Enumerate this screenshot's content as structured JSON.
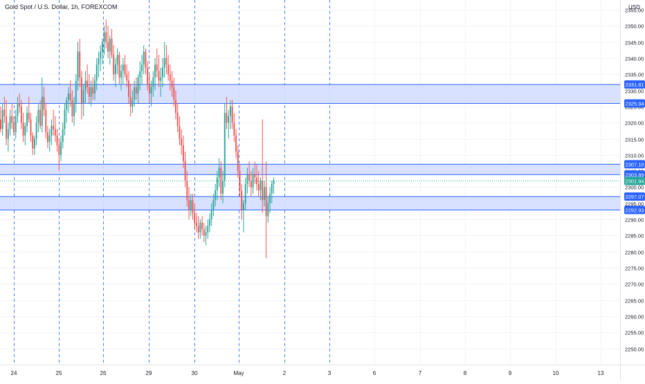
{
  "header": {
    "symbol_title": "Gold Spot / U.S. Dollar, 1h, FOREXCOM",
    "currency": "USD"
  },
  "colors": {
    "up": "#26a69a",
    "down": "#ef5350",
    "zone_fill": "#d4deff",
    "zone_border": "#2962ff",
    "label_bg": "#2962ff",
    "last_price_bg": "#26a69a",
    "session_line": "#4f7cf5",
    "grid": "#f0f3fa",
    "axis_text": "#787b86"
  },
  "chart_data": {
    "type": "candlestick",
    "title": "Gold Spot / U.S. Dollar, 1h, FOREXCOM",
    "ylim": [
      2245,
      2358
    ],
    "y_ticks": [
      2250,
      2255,
      2260,
      2265,
      2270,
      2275,
      2280,
      2285,
      2290,
      2295,
      2300,
      2305,
      2310,
      2315,
      2320,
      2325,
      2330,
      2335,
      2340,
      2345,
      2350,
      2355
    ],
    "y_tick_labels": [
      "2250.00",
      "2255.00",
      "2260.00",
      "2265.00",
      "2270.00",
      "2275.00",
      "2280.00",
      "2285.00",
      "2290.00",
      "2295.00",
      "2300.00",
      "2305.00",
      "2310.00",
      "2315.00",
      "2320.00",
      "2325.00",
      "2330.00",
      "2335.00",
      "2340.00",
      "2345.00",
      "2350.00",
      "2355.00"
    ],
    "x_ticks": [
      "24",
      "25",
      "26",
      "29",
      "30",
      "May",
      "2",
      "3",
      "6",
      "7",
      "8",
      "9",
      "10",
      "13"
    ],
    "session_separators": [
      "24",
      "25",
      "26",
      "29",
      "30",
      "May",
      "2",
      "3"
    ],
    "zones": [
      {
        "top": 2331.81,
        "bottom": 2325.94,
        "top_label": "2331.81",
        "bottom_label": "2325.94"
      },
      {
        "top": 2307.1,
        "bottom": 2303.89,
        "top_label": "2307.10",
        "bottom_label": "2303.89"
      },
      {
        "top": 2297.07,
        "bottom": 2292.93,
        "top_label": "2297.07",
        "bottom_label": "2292.93"
      }
    ],
    "last_price": 2301.94,
    "last_price_label": "2301.94",
    "candles": [
      [
        2328,
        2330,
        2322,
        2324
      ],
      [
        2324,
        2326,
        2318,
        2320
      ],
      [
        2320,
        2323,
        2315,
        2321
      ],
      [
        2321,
        2325,
        2317,
        2318
      ],
      [
        2318,
        2326,
        2316,
        2324
      ],
      [
        2324,
        2328,
        2320,
        2322
      ],
      [
        2322,
        2327,
        2313,
        2315
      ],
      [
        2315,
        2320,
        2311,
        2318
      ],
      [
        2318,
        2324,
        2316,
        2322
      ],
      [
        2322,
        2326,
        2318,
        2320
      ],
      [
        2320,
        2322,
        2316,
        2317
      ],
      [
        2317,
        2324,
        2315,
        2322
      ],
      [
        2322,
        2328,
        2320,
        2326
      ],
      [
        2326,
        2329,
        2323,
        2325
      ],
      [
        2325,
        2327,
        2318,
        2320
      ],
      [
        2320,
        2323,
        2314,
        2316
      ],
      [
        2316,
        2320,
        2313,
        2319
      ],
      [
        2319,
        2325,
        2317,
        2323
      ],
      [
        2323,
        2328,
        2320,
        2321
      ],
      [
        2321,
        2323,
        2314,
        2316
      ],
      [
        2316,
        2317,
        2310,
        2312
      ],
      [
        2312,
        2316,
        2310,
        2315
      ],
      [
        2315,
        2322,
        2313,
        2320
      ],
      [
        2320,
        2326,
        2317,
        2324
      ],
      [
        2324,
        2327,
        2318,
        2319
      ],
      [
        2319,
        2334,
        2317,
        2328
      ],
      [
        2328,
        2331,
        2322,
        2324
      ],
      [
        2324,
        2326,
        2315,
        2317
      ],
      [
        2317,
        2319,
        2312,
        2314
      ],
      [
        2314,
        2318,
        2311,
        2316
      ],
      [
        2316,
        2321,
        2313,
        2319
      ],
      [
        2319,
        2324,
        2316,
        2318
      ],
      [
        2318,
        2322,
        2314,
        2316
      ],
      [
        2316,
        2318,
        2311,
        2313
      ],
      [
        2313,
        2315,
        2305,
        2310
      ],
      [
        2310,
        2316,
        2308,
        2314
      ],
      [
        2314,
        2320,
        2312,
        2318
      ],
      [
        2318,
        2326,
        2316,
        2324
      ],
      [
        2324,
        2328,
        2320,
        2327
      ],
      [
        2327,
        2331,
        2323,
        2329
      ],
      [
        2329,
        2333,
        2325,
        2327
      ],
      [
        2327,
        2330,
        2320,
        2322
      ],
      [
        2322,
        2328,
        2319,
        2326
      ],
      [
        2326,
        2335,
        2323,
        2333
      ],
      [
        2333,
        2345,
        2330,
        2342
      ],
      [
        2342,
        2346,
        2331,
        2334
      ],
      [
        2334,
        2336,
        2321,
        2326
      ],
      [
        2326,
        2332,
        2322,
        2330
      ],
      [
        2330,
        2336,
        2326,
        2333
      ],
      [
        2333,
        2338,
        2329,
        2331
      ],
      [
        2331,
        2335,
        2326,
        2328
      ],
      [
        2328,
        2333,
        2325,
        2331
      ],
      [
        2331,
        2334,
        2327,
        2329
      ],
      [
        2329,
        2335,
        2327,
        2333
      ],
      [
        2333,
        2340,
        2330,
        2338
      ],
      [
        2338,
        2342,
        2334,
        2340
      ],
      [
        2340,
        2344,
        2336,
        2342
      ],
      [
        2342,
        2346,
        2338,
        2345
      ],
      [
        2345,
        2350,
        2341,
        2348
      ],
      [
        2348,
        2352,
        2343,
        2345
      ],
      [
        2345,
        2350,
        2340,
        2342
      ],
      [
        2342,
        2347,
        2338,
        2346
      ],
      [
        2346,
        2349,
        2340,
        2341
      ],
      [
        2341,
        2344,
        2333,
        2335
      ],
      [
        2335,
        2340,
        2331,
        2338
      ],
      [
        2338,
        2343,
        2335,
        2341
      ],
      [
        2341,
        2342,
        2332,
        2334
      ],
      [
        2334,
        2338,
        2330,
        2336
      ],
      [
        2336,
        2340,
        2332,
        2338
      ],
      [
        2338,
        2341,
        2334,
        2335
      ],
      [
        2335,
        2338,
        2331,
        2333
      ],
      [
        2333,
        2336,
        2326,
        2328
      ],
      [
        2328,
        2332,
        2322,
        2325
      ],
      [
        2325,
        2330,
        2323,
        2327
      ],
      [
        2327,
        2333,
        2325,
        2331
      ],
      [
        2331,
        2334,
        2327,
        2329
      ],
      [
        2329,
        2335,
        2326,
        2334
      ],
      [
        2334,
        2339,
        2330,
        2336
      ],
      [
        2336,
        2341,
        2332,
        2338
      ],
      [
        2338,
        2344,
        2335,
        2342
      ],
      [
        2342,
        2343,
        2335,
        2337
      ],
      [
        2337,
        2339,
        2330,
        2332
      ],
      [
        2332,
        2335,
        2326,
        2329
      ],
      [
        2329,
        2333,
        2325,
        2331
      ],
      [
        2331,
        2336,
        2328,
        2334
      ],
      [
        2334,
        2340,
        2330,
        2338
      ],
      [
        2338,
        2343,
        2334,
        2336
      ],
      [
        2336,
        2341,
        2331,
        2333
      ],
      [
        2333,
        2337,
        2328,
        2334
      ],
      [
        2334,
        2340,
        2331,
        2337
      ],
      [
        2337,
        2345,
        2334,
        2340
      ],
      [
        2340,
        2344,
        2335,
        2338
      ],
      [
        2338,
        2341,
        2333,
        2335
      ],
      [
        2335,
        2338,
        2330,
        2333
      ],
      [
        2333,
        2336,
        2328,
        2331
      ],
      [
        2331,
        2334,
        2325,
        2327
      ],
      [
        2327,
        2330,
        2321,
        2323
      ],
      [
        2323,
        2326,
        2317,
        2319
      ],
      [
        2319,
        2322,
        2313,
        2315
      ],
      [
        2315,
        2318,
        2310,
        2313
      ],
      [
        2313,
        2316,
        2306,
        2308
      ],
      [
        2308,
        2311,
        2300,
        2302
      ],
      [
        2302,
        2305,
        2294,
        2296
      ],
      [
        2296,
        2300,
        2290,
        2293
      ],
      [
        2293,
        2298,
        2291,
        2296
      ],
      [
        2296,
        2298,
        2290,
        2292
      ],
      [
        2292,
        2295,
        2287,
        2289
      ],
      [
        2289,
        2292,
        2286,
        2288
      ],
      [
        2288,
        2291,
        2284,
        2286
      ],
      [
        2286,
        2290,
        2284,
        2289
      ],
      [
        2289,
        2291,
        2285,
        2287
      ],
      [
        2287,
        2289,
        2283,
        2285
      ],
      [
        2285,
        2288,
        2282,
        2286
      ],
      [
        2286,
        2290,
        2284,
        2288
      ],
      [
        2288,
        2292,
        2286,
        2290
      ],
      [
        2290,
        2295,
        2288,
        2293
      ],
      [
        2293,
        2298,
        2291,
        2296
      ],
      [
        2296,
        2301,
        2294,
        2299
      ],
      [
        2299,
        2305,
        2296,
        2303
      ],
      [
        2303,
        2309,
        2300,
        2306
      ],
      [
        2306,
        2308,
        2296,
        2298
      ],
      [
        2298,
        2305,
        2295,
        2302
      ],
      [
        2302,
        2326,
        2300,
        2323
      ],
      [
        2323,
        2328,
        2318,
        2320
      ],
      [
        2320,
        2324,
        2315,
        2322
      ],
      [
        2322,
        2327,
        2318,
        2325
      ],
      [
        2325,
        2327,
        2318,
        2320
      ],
      [
        2320,
        2323,
        2314,
        2316
      ],
      [
        2316,
        2318,
        2309,
        2311
      ],
      [
        2311,
        2313,
        2303,
        2305
      ],
      [
        2305,
        2307,
        2297,
        2299
      ],
      [
        2299,
        2301,
        2290,
        2293
      ],
      [
        2293,
        2296,
        2286,
        2295
      ],
      [
        2295,
        2303,
        2293,
        2301
      ],
      [
        2301,
        2306,
        2298,
        2304
      ],
      [
        2304,
        2308,
        2300,
        2302
      ],
      [
        2302,
        2305,
        2297,
        2300
      ],
      [
        2300,
        2306,
        2298,
        2304
      ],
      [
        2304,
        2308,
        2301,
        2303
      ],
      [
        2303,
        2307,
        2299,
        2301
      ],
      [
        2301,
        2305,
        2297,
        2299
      ],
      [
        2299,
        2303,
        2296,
        2302
      ],
      [
        2302,
        2321,
        2292,
        2296
      ],
      [
        2296,
        2302,
        2294,
        2300
      ],
      [
        2300,
        2308,
        2278,
        2291
      ],
      [
        2291,
        2297,
        2289,
        2295
      ],
      [
        2295,
        2300,
        2292,
        2298
      ],
      [
        2298,
        2302,
        2295,
        2301
      ],
      [
        2301,
        2303,
        2298,
        2302
      ]
    ]
  }
}
